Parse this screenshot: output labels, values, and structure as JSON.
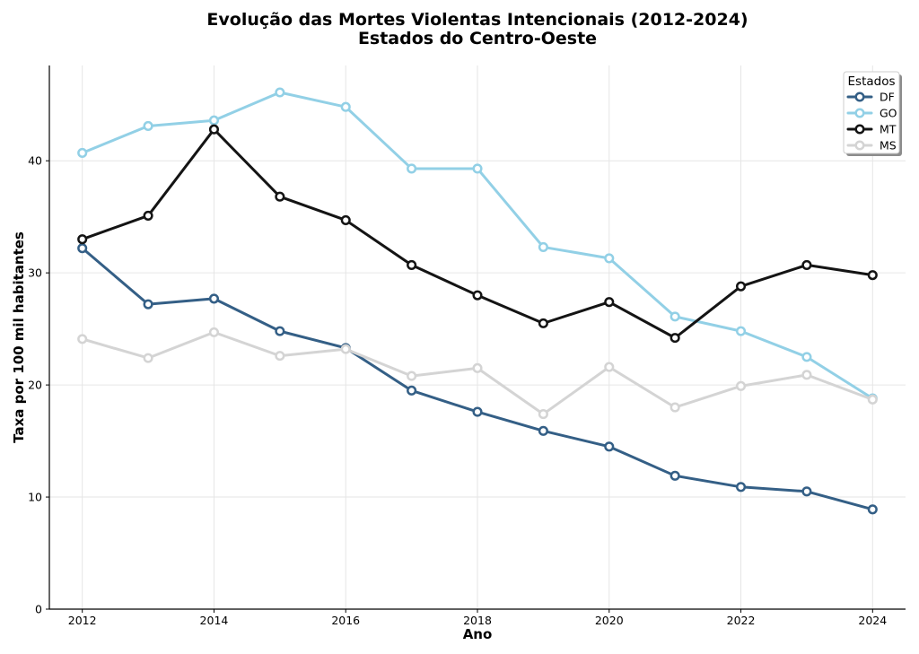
{
  "chart_data": {
    "type": "line",
    "title": "Evolução das Mortes Violentas Intencionais (2012-2024)",
    "subtitle": "Estados do Centro-Oeste",
    "xlabel": "Ano",
    "ylabel": "Taxa por 100 mil habitantes",
    "x": [
      2012,
      2013,
      2014,
      2015,
      2016,
      2017,
      2018,
      2019,
      2020,
      2021,
      2022,
      2023,
      2024
    ],
    "x_ticks": [
      "2012",
      "2014",
      "2016",
      "2018",
      "2020",
      "2022",
      "2024"
    ],
    "y_ticks": [
      "0",
      "10",
      "20",
      "30",
      "40"
    ],
    "xlim": [
      2011.5,
      2024.5
    ],
    "ylim": [
      0,
      48.5
    ],
    "grid": true,
    "legend_title": "Estados",
    "legend_position": "top-right",
    "series": [
      {
        "name": "DF",
        "color": "#345f86",
        "values": [
          32.2,
          27.2,
          27.7,
          24.8,
          23.3,
          19.5,
          17.6,
          15.9,
          14.5,
          11.9,
          10.9,
          10.5,
          8.9
        ]
      },
      {
        "name": "GO",
        "color": "#92d0e6",
        "values": [
          40.7,
          43.1,
          43.6,
          46.1,
          44.8,
          39.3,
          39.3,
          32.3,
          31.3,
          26.1,
          24.8,
          22.5,
          18.8
        ]
      },
      {
        "name": "MT",
        "color": "#141414",
        "values": [
          33.0,
          35.1,
          42.8,
          36.8,
          34.7,
          30.7,
          28.0,
          25.5,
          27.4,
          24.2,
          28.8,
          30.7,
          29.8
        ]
      },
      {
        "name": "MS",
        "color": "#d4d4d4",
        "values": [
          24.1,
          22.4,
          24.7,
          22.6,
          23.2,
          20.8,
          21.5,
          17.4,
          21.6,
          18.0,
          19.9,
          20.9,
          18.7
        ]
      }
    ]
  }
}
